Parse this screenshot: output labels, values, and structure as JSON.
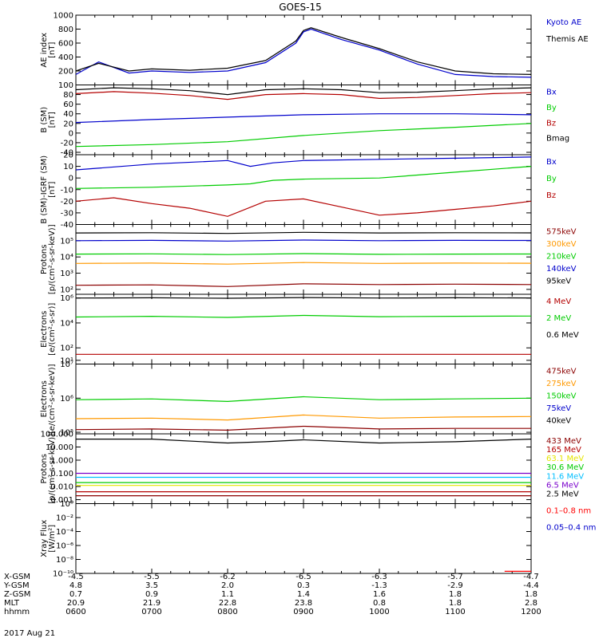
{
  "title": "GOES-15",
  "date_label": "2017 Aug 21",
  "colors": {
    "black": "#000000",
    "red": "#b40000",
    "darkred": "#8b0000",
    "orange": "#ff9900",
    "green": "#00cc00",
    "blue": "#0000cc",
    "cyan": "#00bfff",
    "purple": "#7a00cc",
    "yellow": "#e6e600",
    "xray_red": "#ff0000"
  },
  "footer": {
    "row_labels": [
      "X-GSM",
      "Y-GSM",
      "Z-GSM",
      "MLT",
      "hhmm"
    ],
    "columns": [
      {
        "x": 0,
        "values": [
          "-4.5",
          "4.8",
          "0.7",
          "20.9",
          "0600"
        ]
      },
      {
        "x": 1,
        "values": [
          "-5.5",
          "3.5",
          "0.9",
          "21.9",
          "0700"
        ]
      },
      {
        "x": 2,
        "values": [
          "-6.2",
          "2.0",
          "1.1",
          "22.8",
          "0800"
        ]
      },
      {
        "x": 3,
        "values": [
          "-6.5",
          "0.3",
          "1.4",
          "23.8",
          "0900"
        ]
      },
      {
        "x": 4,
        "values": [
          "-6.3",
          "-1.3",
          "1.6",
          "0.8",
          "1000"
        ]
      },
      {
        "x": 5,
        "values": [
          "-5.7",
          "-2.9",
          "1.8",
          "1.8",
          "1100"
        ]
      },
      {
        "x": 6,
        "values": [
          "-4.7",
          "-4.4",
          "1.8",
          "2.8",
          "1200"
        ]
      }
    ]
  },
  "chart_data": [
    {
      "type": "line",
      "ylabel": [
        "AE index",
        "[nT]"
      ],
      "ylim": [
        0,
        1000
      ],
      "yticks": [
        200,
        400,
        600,
        800,
        1000
      ],
      "ytick_labels": [
        "200",
        "400",
        "600",
        "800",
        "1000"
      ],
      "series": [
        {
          "name": "Kyoto AE",
          "color": "blue",
          "x": [
            0,
            0.3,
            0.7,
            1,
            1.5,
            2,
            2.5,
            2.9,
            3,
            3.1,
            3.5,
            4,
            4.5,
            5,
            5.5,
            6
          ],
          "values": [
            150,
            330,
            170,
            200,
            180,
            200,
            320,
            600,
            760,
            800,
            650,
            500,
            300,
            150,
            120,
            110
          ]
        },
        {
          "name": "Themis AE",
          "color": "black",
          "x": [
            0,
            0.3,
            0.7,
            1,
            1.5,
            2,
            2.5,
            2.9,
            3,
            3.1,
            3.5,
            4,
            4.5,
            5,
            5.5,
            6
          ],
          "values": [
            200,
            310,
            200,
            230,
            210,
            240,
            350,
            630,
            780,
            820,
            680,
            520,
            330,
            200,
            160,
            150
          ]
        }
      ]
    },
    {
      "type": "line",
      "ylabel": [
        "B (SM)",
        "[nT]"
      ],
      "ylim": [
        -45,
        100
      ],
      "yticks": [
        -40,
        -20,
        0,
        20,
        40,
        60,
        80,
        100
      ],
      "ytick_labels": [
        "-40",
        "-20",
        "0",
        "20",
        "40",
        "60",
        "80",
        "100"
      ],
      "series": [
        {
          "name": "Bx",
          "color": "blue",
          "x": [
            0,
            1,
            2,
            3,
            4,
            5,
            6
          ],
          "values": [
            22,
            28,
            33,
            38,
            40,
            40,
            38
          ]
        },
        {
          "name": "By",
          "color": "green",
          "x": [
            0,
            1,
            2,
            3,
            4,
            5,
            6
          ],
          "values": [
            -28,
            -24,
            -18,
            -5,
            5,
            12,
            20
          ]
        },
        {
          "name": "Bz",
          "color": "red",
          "x": [
            0,
            0.5,
            1,
            1.5,
            2,
            2.5,
            3,
            3.5,
            4,
            4.5,
            5,
            5.5,
            6
          ],
          "values": [
            82,
            86,
            83,
            78,
            70,
            80,
            82,
            80,
            72,
            74,
            78,
            82,
            84
          ]
        },
        {
          "name": "Bmag",
          "color": "black",
          "x": [
            0,
            0.5,
            1,
            1.5,
            2,
            2.5,
            3,
            3.5,
            4,
            4.5,
            5,
            5.5,
            6
          ],
          "values": [
            90,
            94,
            92,
            88,
            80,
            90,
            92,
            90,
            84,
            85,
            88,
            92,
            94
          ]
        }
      ]
    },
    {
      "type": "line",
      "ylabel": [
        "B (SM)-IGRF (SM)",
        "[nT]"
      ],
      "ylim": [
        -40,
        20
      ],
      "yticks": [
        -40,
        -30,
        -20,
        -10,
        0,
        10,
        20
      ],
      "ytick_labels": [
        "-40",
        "-30",
        "-20",
        "-10",
        "0",
        "10",
        "20"
      ],
      "series": [
        {
          "name": "Bx",
          "color": "blue",
          "x": [
            0,
            1,
            2,
            2.3,
            2.6,
            3,
            4,
            5,
            6
          ],
          "values": [
            7,
            12,
            15,
            10,
            13,
            15,
            16,
            17,
            18
          ]
        },
        {
          "name": "By",
          "color": "green",
          "x": [
            0,
            1,
            2,
            2.3,
            2.6,
            3,
            4,
            5,
            6
          ],
          "values": [
            -9,
            -8,
            -6,
            -5,
            -2,
            -1,
            0,
            5,
            10
          ]
        },
        {
          "name": "Bz",
          "color": "red",
          "x": [
            0,
            0.5,
            1,
            1.5,
            2,
            2.5,
            3,
            3.5,
            4,
            4.5,
            5,
            5.5,
            6
          ],
          "values": [
            -20,
            -17,
            -22,
            -26,
            -33,
            -20,
            -18,
            -25,
            -32,
            -30,
            -27,
            -24,
            -20
          ]
        }
      ]
    },
    {
      "type": "line",
      "ylabel": [
        "Protons",
        "[p/(cm²-s-sr-keV)]"
      ],
      "yscale": "log",
      "ylim": [
        50,
        1000000
      ],
      "yticks": [
        100,
        1000,
        10000,
        100000
      ],
      "ytick_labels": [
        "10²",
        "10³",
        "10⁴",
        "10⁵"
      ],
      "series": [
        {
          "name": "575keV",
          "color": "darkred",
          "x": [
            0,
            1,
            2,
            3,
            4,
            5,
            6
          ],
          "values": [
            180,
            190,
            150,
            220,
            200,
            210,
            200
          ]
        },
        {
          "name": "300keV",
          "color": "orange",
          "x": [
            0,
            1,
            2,
            3,
            4,
            5,
            6
          ],
          "values": [
            4000,
            4200,
            3600,
            4500,
            4000,
            4200,
            4100
          ]
        },
        {
          "name": "210keV",
          "color": "green",
          "x": [
            0,
            1,
            2,
            3,
            4,
            5,
            6
          ],
          "values": [
            15000,
            15500,
            14000,
            16000,
            14500,
            15000,
            15200
          ]
        },
        {
          "name": "140keV",
          "color": "blue",
          "x": [
            0,
            1,
            2,
            3,
            4,
            5,
            6
          ],
          "values": [
            100000,
            105000,
            95000,
            110000,
            100000,
            105000,
            104000
          ]
        },
        {
          "name": "95keV",
          "color": "black",
          "x": [
            0,
            1,
            2,
            3,
            4,
            5,
            6
          ],
          "values": [
            300000,
            310000,
            280000,
            330000,
            300000,
            310000,
            305000
          ]
        }
      ]
    },
    {
      "type": "line",
      "ylabel": [
        "Electrons",
        "[e/(cm²-s-sr)]"
      ],
      "yscale": "log",
      "ylim": [
        5,
        2000000
      ],
      "yticks": [
        10,
        100,
        10000,
        1000000
      ],
      "ytick_labels": [
        "10¹",
        "10²",
        "10⁴",
        "10⁶"
      ],
      "series": [
        {
          "name": "4 MeV",
          "color": "red",
          "x": [
            0,
            1,
            2,
            3,
            4,
            5,
            6
          ],
          "values": [
            30,
            30,
            30,
            30,
            30,
            30,
            30
          ]
        },
        {
          "name": "2 MeV",
          "color": "green",
          "x": [
            0,
            1,
            2,
            3,
            4,
            5,
            6
          ],
          "values": [
            30000,
            34000,
            28000,
            40000,
            32000,
            34000,
            36000
          ]
        },
        {
          "name": "0.6 MeV",
          "color": "black",
          "x": [
            0,
            1,
            2,
            3,
            4,
            5,
            6
          ],
          "values": [
            1000000,
            1050000,
            950000,
            1100000,
            1000000,
            1050000,
            1020000
          ]
        }
      ]
    },
    {
      "type": "line",
      "ylabel": [
        "Electrons",
        "[e/(cm²-s-sr-keV)]"
      ],
      "yscale": "log",
      "ylim": [
        90000,
        10000000
      ],
      "yticks": [
        100000,
        1000000,
        10000000
      ],
      "ytick_labels": [
        "10⁵",
        "10⁶",
        "10⁷"
      ],
      "series": [
        {
          "name": "475keV",
          "color": "darkred",
          "x": [
            0,
            1,
            2,
            3,
            4,
            5,
            6
          ],
          "values": [
            120000,
            125000,
            115000,
            150000,
            125000,
            130000,
            130000
          ]
        },
        {
          "name": "275keV",
          "color": "orange",
          "x": [
            0,
            1,
            2,
            3,
            4,
            5,
            6
          ],
          "values": [
            250000,
            260000,
            230000,
            320000,
            260000,
            280000,
            290000
          ]
        },
        {
          "name": "150keV",
          "color": "green",
          "x": [
            0,
            1,
            2,
            3,
            4,
            5,
            6
          ],
          "values": [
            900000,
            950000,
            800000,
            1100000,
            900000,
            950000,
            1000000
          ]
        },
        {
          "name": "75keV",
          "color": "blue",
          "x": [],
          "values": []
        },
        {
          "name": "40keV",
          "color": "black",
          "x": [],
          "values": []
        }
      ]
    },
    {
      "type": "line",
      "ylabel": [
        "Protons",
        "[p/(cm²-s-sr-keV)]"
      ],
      "yscale": "log",
      "ylim": [
        0.0005,
        100
      ],
      "yticks": [
        0.001,
        0.01,
        0.1,
        1,
        10,
        100
      ],
      "ytick_labels": [
        "0.001",
        "0.010",
        "0.100",
        "1.000",
        "10.000",
        "100.000"
      ],
      "series": [
        {
          "name": "433 MeV",
          "color": "darkred",
          "x": [
            0,
            6
          ],
          "values": [
            0.002,
            0.002
          ]
        },
        {
          "name": "165 MeV",
          "color": "red",
          "x": [
            0,
            6
          ],
          "values": [
            0.004,
            0.004
          ]
        },
        {
          "name": "63.1 MeV",
          "color": "yellow",
          "x": [
            0,
            6
          ],
          "values": [
            0.012,
            0.012
          ]
        },
        {
          "name": "30.6 MeV",
          "color": "green",
          "x": [
            0,
            6
          ],
          "values": [
            0.02,
            0.02
          ]
        },
        {
          "name": "11.6 MeV",
          "color": "cyan",
          "x": [
            0,
            6
          ],
          "values": [
            0.05,
            0.05
          ]
        },
        {
          "name": "6.5 MeV",
          "color": "purple",
          "x": [
            0,
            6
          ],
          "values": [
            0.1,
            0.1
          ]
        },
        {
          "name": "2.5 MeV",
          "color": "black",
          "x": [
            0,
            1,
            2,
            2.5,
            3,
            4,
            5,
            6
          ],
          "values": [
            40,
            40,
            20,
            25,
            35,
            20,
            25,
            40
          ]
        }
      ]
    },
    {
      "type": "line",
      "ylabel": [
        "Xray Flux",
        "[W/m²]"
      ],
      "yscale": "log",
      "ylim": [
        1e-10,
        1
      ],
      "yticks": [
        1e-10,
        1e-08,
        1e-06,
        0.0001,
        0.01,
        1
      ],
      "ytick_labels": [
        "10⁻¹⁰",
        "10⁻⁸",
        "10⁻⁶",
        "10⁻⁴",
        "10⁻²",
        "10⁰"
      ],
      "series": [
        {
          "name": "0.1–0.8 nm",
          "color": "xray_red",
          "x": [
            5.65,
            6
          ],
          "values": [
            2e-10,
            2e-10
          ]
        },
        {
          "name": "0.05–0.4 nm",
          "color": "blue",
          "x": [],
          "values": []
        }
      ]
    }
  ]
}
